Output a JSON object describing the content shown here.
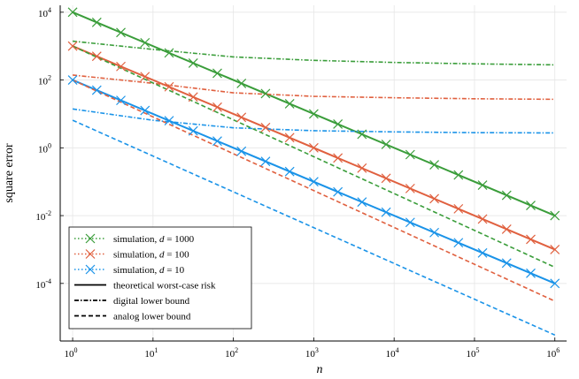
{
  "chart_data": {
    "type": "line",
    "xlabel": "n",
    "ylabel": "square error",
    "xscale": "log",
    "yscale": "log",
    "xlim": [
      0.7,
      1400000
    ],
    "ylim": [
      2e-06,
      16000
    ],
    "grid": true,
    "legend_position": "bottom-left",
    "x_ticks": [
      {
        "base": "10",
        "exp": "0",
        "value": 1
      },
      {
        "base": "10",
        "exp": "1",
        "value": 10
      },
      {
        "base": "10",
        "exp": "2",
        "value": 100
      },
      {
        "base": "10",
        "exp": "3",
        "value": 1000
      },
      {
        "base": "10",
        "exp": "4",
        "value": 10000
      },
      {
        "base": "10",
        "exp": "5",
        "value": 100000
      },
      {
        "base": "10",
        "exp": "6",
        "value": 1000000
      }
    ],
    "y_ticks": [
      {
        "base": "10",
        "exp": "-4",
        "value": 0.0001
      },
      {
        "base": "10",
        "exp": "-2",
        "value": 0.01
      },
      {
        "base": "10",
        "exp": "0",
        "value": 1
      },
      {
        "base": "10",
        "exp": "2",
        "value": 100
      },
      {
        "base": "10",
        "exp": "4",
        "value": 10000
      }
    ],
    "colors": {
      "d1000": "#3a9d3a",
      "d100": "#e0603f",
      "d10": "#1a93e8"
    },
    "series": [
      {
        "name": "theoretical worst-case risk (d = 1000)",
        "group": "d1000",
        "style": "solid",
        "x": [
          1,
          1000000
        ],
        "y": [
          10000,
          0.01
        ]
      },
      {
        "name": "theoretical worst-case risk (d = 100)",
        "group": "d100",
        "style": "solid",
        "x": [
          1,
          1000000
        ],
        "y": [
          1000,
          0.001
        ]
      },
      {
        "name": "theoretical worst-case risk (d = 10)",
        "group": "d10",
        "style": "solid",
        "x": [
          1,
          1000000
        ],
        "y": [
          100,
          0.0001
        ]
      },
      {
        "name": "digital lower bound (d = 1000)",
        "group": "d1000",
        "style": "dashdot",
        "x": [
          1,
          10,
          100,
          1000,
          10000,
          100000,
          1000000
        ],
        "y": [
          1400,
          800,
          480,
          380,
          330,
          300,
          280
        ]
      },
      {
        "name": "digital lower bound (d = 100)",
        "group": "d100",
        "style": "dashdot",
        "x": [
          1,
          10,
          100,
          1000,
          10000,
          100000,
          1000000
        ],
        "y": [
          140,
          80,
          42,
          33,
          30,
          28,
          27
        ]
      },
      {
        "name": "digital lower bound (d = 10)",
        "group": "d10",
        "style": "dashdot",
        "x": [
          1,
          10,
          100,
          1000,
          10000,
          100000,
          1000000
        ],
        "y": [
          14,
          6.5,
          3.9,
          3.2,
          2.95,
          2.8,
          2.75
        ]
      },
      {
        "name": "analog lower bound (d = 1000)",
        "group": "d1000",
        "style": "dashed",
        "x": [
          1,
          1000000
        ],
        "y": [
          1000,
          0.0003
        ]
      },
      {
        "name": "analog lower bound (d = 100)",
        "group": "d100",
        "style": "dashed",
        "x": [
          1,
          1000000
        ],
        "y": [
          100,
          3e-05
        ]
      },
      {
        "name": "analog lower bound (d = 10)",
        "group": "d10",
        "style": "dashed",
        "x": [
          1,
          1000000
        ],
        "y": [
          6.5,
          3e-06
        ]
      },
      {
        "name": "simulation (d = 1000)",
        "group": "d1000",
        "style": "markers",
        "x": [
          1,
          1.995,
          3.981,
          7.943,
          15.85,
          31.62,
          63.1,
          125.9,
          251.2,
          501.2,
          1000,
          1995,
          3981,
          7943,
          15849,
          31623,
          63096,
          125893,
          251189,
          501187,
          1000000
        ],
        "y": [
          10000,
          5012,
          2512,
          1259,
          631,
          316,
          158.5,
          79.4,
          39.8,
          19.95,
          10,
          5.01,
          2.51,
          1.259,
          0.631,
          0.316,
          0.1585,
          0.0794,
          0.0398,
          0.01995,
          0.01
        ]
      },
      {
        "name": "simulation (d = 100)",
        "group": "d100",
        "style": "markers",
        "x": [
          1,
          1.995,
          3.981,
          7.943,
          15.85,
          31.62,
          63.1,
          125.9,
          251.2,
          501.2,
          1000,
          1995,
          3981,
          7943,
          15849,
          31623,
          63096,
          125893,
          251189,
          501187,
          1000000
        ],
        "y": [
          1000,
          501,
          251,
          125.9,
          63.1,
          31.6,
          15.85,
          7.94,
          3.98,
          1.995,
          1,
          0.501,
          0.251,
          0.1259,
          0.0631,
          0.0316,
          0.01585,
          0.00794,
          0.00398,
          0.001995,
          0.001
        ]
      },
      {
        "name": "simulation (d = 10)",
        "group": "d10",
        "style": "markers",
        "x": [
          1,
          1.995,
          3.981,
          7.943,
          15.85,
          31.62,
          63.1,
          125.9,
          251.2,
          501.2,
          1000,
          1995,
          3981,
          7943,
          15849,
          31623,
          63096,
          125893,
          251189,
          501187,
          1000000
        ],
        "y": [
          100,
          50.1,
          25.1,
          12.59,
          6.31,
          3.16,
          1.585,
          0.794,
          0.398,
          0.1995,
          0.1,
          0.0501,
          0.0251,
          0.01259,
          0.00631,
          0.00316,
          0.001585,
          0.000794,
          0.000398,
          0.0001995,
          0.0001
        ]
      }
    ],
    "legend": [
      {
        "label_prefix": "simulation, ",
        "label_var": "d",
        "label_suffix": " = 1000",
        "group": "d1000",
        "style": "sim"
      },
      {
        "label_prefix": "simulation, ",
        "label_var": "d",
        "label_suffix": " = 100",
        "group": "d100",
        "style": "sim"
      },
      {
        "label_prefix": "simulation, ",
        "label_var": "d",
        "label_suffix": " = 10",
        "group": "d10",
        "style": "sim"
      },
      {
        "label_prefix": "theoretical worst-case risk",
        "label_var": "",
        "label_suffix": "",
        "group": "black",
        "style": "solid"
      },
      {
        "label_prefix": "digital lower bound",
        "label_var": "",
        "label_suffix": "",
        "group": "black",
        "style": "dashdot"
      },
      {
        "label_prefix": "analog lower bound",
        "label_var": "",
        "label_suffix": "",
        "group": "black",
        "style": "dashed"
      }
    ]
  }
}
